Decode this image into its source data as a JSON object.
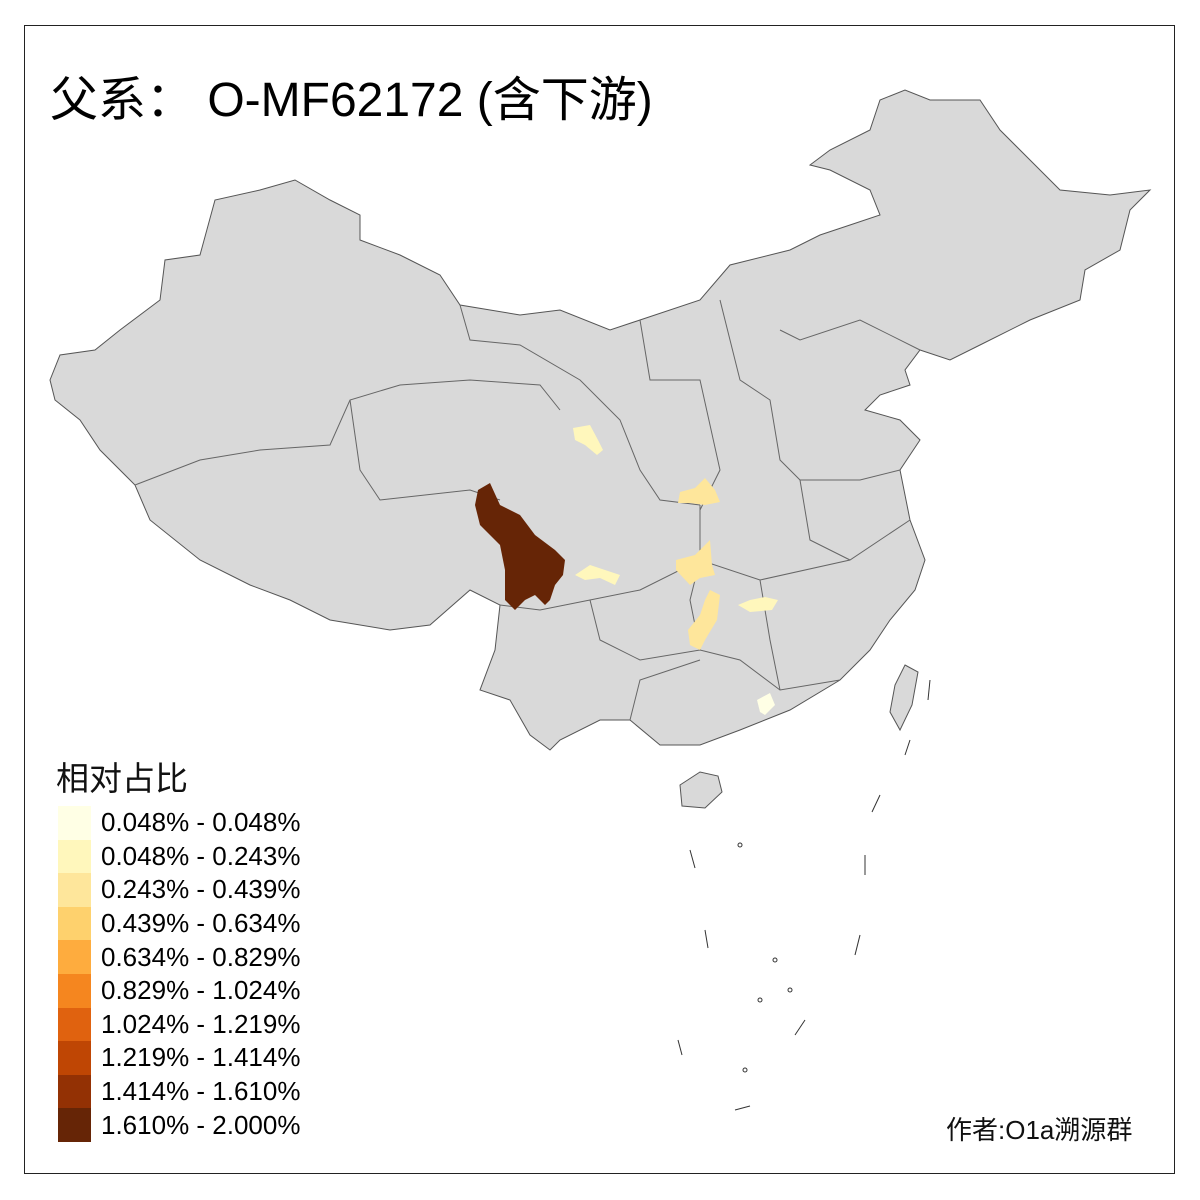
{
  "title": "父系： O-MF62172 (含下游)",
  "legend": {
    "title": "相对占比",
    "items": [
      {
        "label": "0.048% - 0.048%",
        "color": "#FFFFE5"
      },
      {
        "label": "0.048% - 0.243%",
        "color": "#FFF7BC"
      },
      {
        "label": "0.243% - 0.439%",
        "color": "#FEE69B"
      },
      {
        "label": "0.439% - 0.634%",
        "color": "#FED16D"
      },
      {
        "label": "0.634% - 0.829%",
        "color": "#FEAC3E"
      },
      {
        "label": "0.829% - 1.024%",
        "color": "#F5861F"
      },
      {
        "label": "1.024% - 1.219%",
        "color": "#E0620F"
      },
      {
        "label": "1.219% - 1.414%",
        "color": "#BF4604"
      },
      {
        "label": "1.414% - 1.610%",
        "color": "#933104"
      },
      {
        "label": "1.610% - 2.000%",
        "color": "#662506"
      }
    ]
  },
  "credit": "作者:O1a溯源群",
  "map_colors": {
    "base": "#D9D9D9",
    "border": "#555555"
  }
}
